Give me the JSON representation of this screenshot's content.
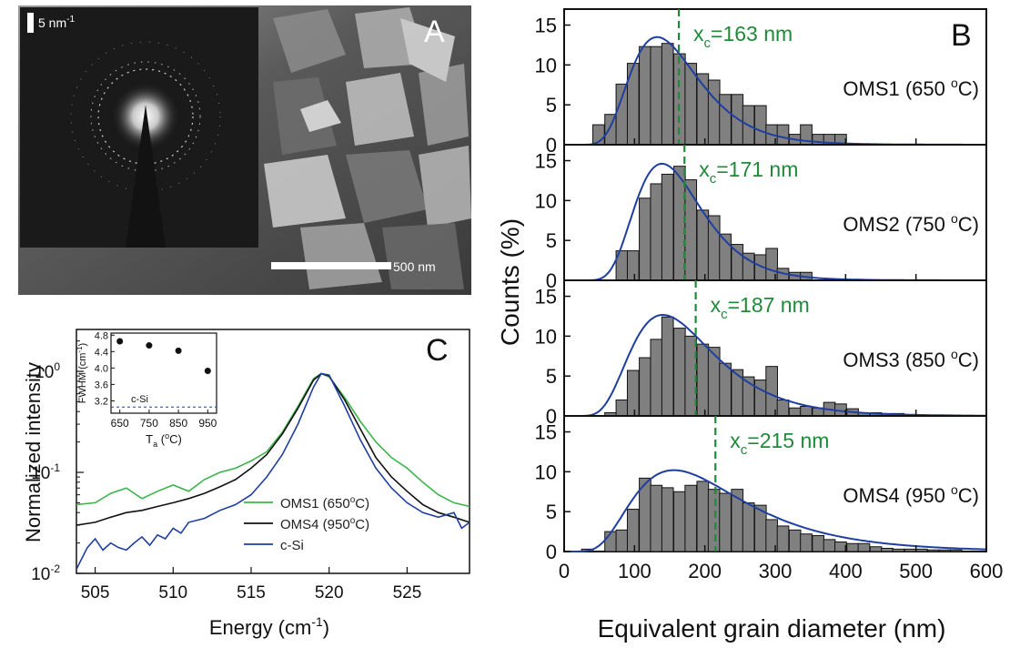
{
  "panels": {
    "a": {
      "label": "A",
      "scale_inset": "5 nm",
      "scale_inset_sup": "-1",
      "scale_bar": "500 nm"
    }
  },
  "chart_data": [
    {
      "type": "bar",
      "panel_label": "B",
      "xlabel": "Equivalent grain diameter (nm)",
      "ylabel": "Counts (%)",
      "xlim": [
        0,
        600
      ],
      "ylim": [
        0,
        17
      ],
      "xticks": [
        0,
        100,
        200,
        300,
        400,
        500,
        600
      ],
      "yticks": [
        0,
        5,
        10,
        15
      ],
      "bin_width": 16.4,
      "bar_color": "#808080",
      "fit_color": "#1f3fa0",
      "marker_color": "#1e8a3a",
      "subplots": [
        {
          "name": "OMS1 (650 °C)",
          "label_main": "OMS1 (650 ",
          "label_sup": "o",
          "label_end": "C)",
          "xc_prefix": "x",
          "xc_sub": "c",
          "xc_text": "=163 nm",
          "xc": 163,
          "bins": [
            49,
            66,
            82,
            98,
            115,
            131,
            147,
            164,
            180,
            197,
            213,
            229,
            246,
            262,
            279,
            295,
            311,
            328,
            344,
            361,
            377,
            393
          ],
          "values": [
            2.5,
            3.8,
            7.6,
            10.2,
            12.3,
            12.3,
            12.7,
            11.4,
            10.2,
            8.9,
            8.1,
            6.3,
            6.3,
            4.9,
            4.9,
            2.5,
            2.5,
            1.3,
            2.5,
            1.3,
            1.3,
            1.3
          ],
          "fit": {
            "mu": 5.02,
            "sigma": 0.37,
            "amp": 12.6
          }
        },
        {
          "name": "OMS2 (750 °C)",
          "label_main": "OMS2 (750 ",
          "label_sup": "o",
          "label_end": "C)",
          "xc_prefix": "x",
          "xc_sub": "c",
          "xc_text": "=171 nm",
          "xc": 171,
          "bins": [
            82,
            98,
            115,
            131,
            147,
            164,
            180,
            197,
            213,
            229,
            246,
            262,
            279,
            295,
            311,
            328,
            344
          ],
          "values": [
            3.7,
            3.7,
            10.3,
            12.1,
            13.3,
            14.3,
            12.6,
            8.8,
            8.1,
            5.8,
            4.5,
            3.4,
            3.2,
            4.0,
            1.5,
            1.0,
            1.0
          ],
          "fit": {
            "mu": 5.05,
            "sigma": 0.34,
            "amp": 13.8
          }
        },
        {
          "name": "OMS3 (850 °C)",
          "label_main": "OMS3 (850 ",
          "label_sup": "o",
          "label_end": "C)",
          "xc_prefix": "x",
          "xc_sub": "c",
          "xc_text": "=187 nm",
          "xc": 187,
          "bins": [
            66,
            82,
            98,
            115,
            131,
            147,
            164,
            180,
            197,
            213,
            229,
            246,
            262,
            279,
            295,
            311,
            328,
            344,
            361,
            377,
            393,
            410,
            426,
            443,
            459,
            475
          ],
          "values": [
            0.4,
            2.0,
            5.7,
            7.3,
            9.6,
            12.4,
            11.0,
            10.0,
            9.0,
            8.6,
            6.6,
            5.8,
            4.9,
            4.5,
            6.2,
            2.0,
            1.0,
            1.2,
            1.0,
            1.7,
            1.5,
            0.9,
            0.4,
            0.4,
            0.3,
            0.3
          ],
          "fit": {
            "mu": 5.12,
            "sigma": 0.42,
            "amp": 11.6
          }
        },
        {
          "name": "OMS4 (950 °C)",
          "label_main": "OMS4 (950 ",
          "label_sup": "o",
          "label_end": "C)",
          "xc_prefix": "x",
          "xc_sub": "c",
          "xc_text": "=215 nm",
          "xc": 215,
          "bins": [
            33,
            66,
            82,
            98,
            115,
            131,
            147,
            164,
            180,
            197,
            213,
            229,
            246,
            262,
            279,
            295,
            311,
            328,
            344,
            361,
            377,
            393,
            410,
            426,
            443,
            459,
            475,
            492,
            508,
            525,
            541,
            557
          ],
          "values": [
            0.3,
            2.5,
            2.7,
            5.3,
            9.2,
            8.3,
            8.0,
            7.5,
            8.3,
            8.8,
            7.8,
            7.3,
            7.8,
            6.1,
            5.8,
            4.0,
            3.2,
            2.7,
            2.2,
            2.0,
            1.5,
            1.2,
            1.0,
            1.0,
            0.6,
            0.4,
            0.3,
            0.3,
            0.3,
            0.2,
            0.2,
            0.2
          ],
          "fit": {
            "mu": 5.3,
            "sigma": 0.5,
            "amp": 9.0
          }
        }
      ]
    },
    {
      "type": "line",
      "panel_label": "C",
      "xlabel_main": "Energy (cm",
      "xlabel_sup": "-1",
      "xlabel_end": ")",
      "ylabel": "Normalized intensity",
      "xlim": [
        503.8,
        529
      ],
      "ylim": [
        0.01,
        2.6
      ],
      "yscale": "log",
      "xticks": [
        505,
        510,
        515,
        520,
        525
      ],
      "ytick_mantissa": "10",
      "yticks": [
        {
          "value": 0.01,
          "exp": "-2"
        },
        {
          "value": 0.1,
          "exp": "-1"
        },
        {
          "value": 1,
          "exp": "0"
        }
      ],
      "legend_placement": "bottom-right",
      "series": [
        {
          "name": "OMS1 (650°C)",
          "legend_main": "OMS1 (650",
          "legend_sup": "o",
          "legend_end": "C)",
          "color": "#3cb44b",
          "x": [
            503.8,
            505,
            506,
            507,
            508,
            509,
            510,
            511,
            512,
            513,
            514,
            515,
            516,
            517,
            518,
            519,
            519.5,
            520,
            521,
            522,
            523,
            524,
            525,
            526,
            527,
            528,
            529
          ],
          "y": [
            0.048,
            0.05,
            0.062,
            0.07,
            0.055,
            0.065,
            0.075,
            0.065,
            0.085,
            0.1,
            0.11,
            0.13,
            0.16,
            0.25,
            0.45,
            0.85,
            0.95,
            0.88,
            0.55,
            0.32,
            0.2,
            0.14,
            0.11,
            0.08,
            0.06,
            0.05,
            0.046
          ]
        },
        {
          "name": "OMS4 (950°C)",
          "legend_main": "OMS4 (950",
          "legend_sup": "o",
          "legend_end": "C)",
          "color": "#111111",
          "x": [
            503.8,
            505,
            506,
            507,
            508,
            509,
            510,
            511,
            512,
            513,
            514,
            515,
            516,
            517,
            518,
            519,
            519.5,
            520,
            521,
            522,
            523,
            524,
            525,
            526,
            527,
            528,
            529
          ],
          "y": [
            0.03,
            0.032,
            0.036,
            0.04,
            0.042,
            0.046,
            0.05,
            0.055,
            0.062,
            0.072,
            0.085,
            0.11,
            0.15,
            0.24,
            0.43,
            0.82,
            0.95,
            0.9,
            0.52,
            0.27,
            0.14,
            0.09,
            0.065,
            0.048,
            0.04,
            0.036,
            0.032
          ]
        },
        {
          "name": "c-Si",
          "legend_main": "c-Si",
          "color": "#1f3fa0",
          "x": [
            503.8,
            504.5,
            505,
            505.5,
            506,
            506.5,
            507,
            507.5,
            508,
            508.5,
            509,
            509.5,
            510,
            510.5,
            511,
            512,
            513,
            514,
            515,
            516,
            517,
            518,
            519,
            519.5,
            520,
            521,
            522,
            523,
            524,
            525,
            526,
            527,
            528,
            528.5,
            529
          ],
          "y": [
            0.011,
            0.018,
            0.022,
            0.017,
            0.02,
            0.018,
            0.017,
            0.02,
            0.023,
            0.019,
            0.024,
            0.022,
            0.028,
            0.025,
            0.032,
            0.035,
            0.042,
            0.048,
            0.06,
            0.09,
            0.15,
            0.3,
            0.7,
            0.95,
            0.92,
            0.45,
            0.21,
            0.11,
            0.07,
            0.05,
            0.04,
            0.036,
            0.04,
            0.028,
            0.032
          ]
        }
      ],
      "inset": {
        "xlabel_main": "T",
        "xlabel_sub": "a",
        "xlabel_mid": " (",
        "xlabel_sup": "o",
        "xlabel_end": "C)",
        "ylabel_main": "FWHM (cm",
        "ylabel_sup": "-1",
        "ylabel_end": ")",
        "xlim": [
          620,
          980
        ],
        "ylim": [
          2.9,
          4.85
        ],
        "xticks": [
          650,
          750,
          850,
          950
        ],
        "yticks": [
          "3.2",
          "3.6",
          "4.0",
          "4.4",
          "4.8"
        ],
        "reference_label": "c-Si",
        "reference_value": 3.05,
        "points": [
          {
            "x": 650,
            "y": 4.65,
            "err": 0.07
          },
          {
            "x": 750,
            "y": 4.55,
            "err": 0.07
          },
          {
            "x": 850,
            "y": 4.42,
            "err": 0.07
          },
          {
            "x": 950,
            "y": 3.93,
            "err": 0.07
          }
        ]
      }
    }
  ]
}
